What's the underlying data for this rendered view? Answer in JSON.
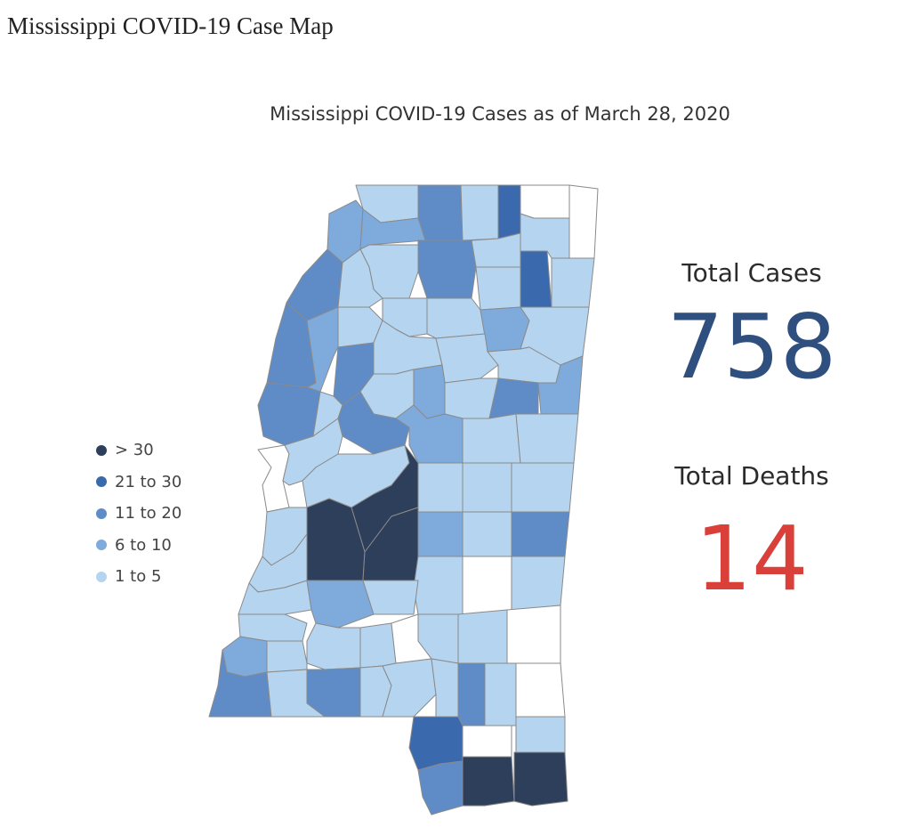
{
  "page": {
    "heading": "Mississippi COVID-19 Case Map"
  },
  "map": {
    "title": "Mississippi COVID-19 Cases as of March 28, 2020",
    "legend": [
      {
        "label": "> 30",
        "color": "#2e3f5c"
      },
      {
        "label": "21 to 30",
        "color": "#3b69ad"
      },
      {
        "label": "11 to 20",
        "color": "#5f8cc6"
      },
      {
        "label": "6 to 10",
        "color": "#7eaadc"
      },
      {
        "label": "1 to 5",
        "color": "#b5d4ef"
      }
    ],
    "no_cases_color": "#ffffff",
    "border_color": "#8a8a8a"
  },
  "stats": {
    "total_cases_label": "Total Cases",
    "total_cases_value": "758",
    "total_cases_color": "#2f4f7f",
    "total_deaths_label": "Total Deaths",
    "total_deaths_value": "14",
    "total_deaths_color": "#d9403a"
  }
}
